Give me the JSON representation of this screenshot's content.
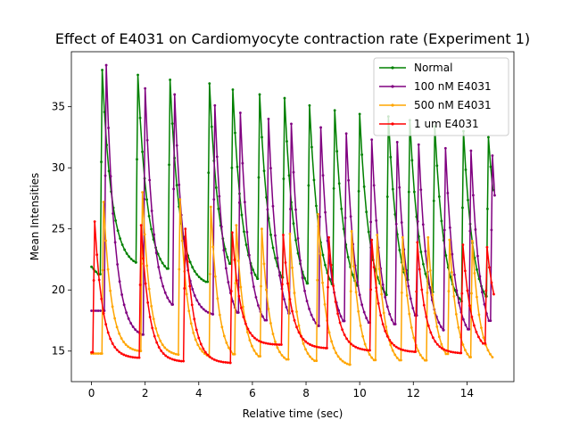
{
  "chart_data": {
    "type": "line",
    "title": "Effect of E4031 on Cardiomyocyte contraction rate (Experiment 1)",
    "xlabel": "Relative time (sec)",
    "ylabel": "Mean Intensities",
    "xlim": [
      -0.75,
      15.75
    ],
    "ylim": [
      12.5,
      39.5
    ],
    "xticks": [
      0,
      2,
      4,
      6,
      8,
      10,
      12,
      14
    ],
    "yticks": [
      15,
      20,
      25,
      30,
      35
    ],
    "grid": false,
    "legend": "top-right",
    "series": [
      {
        "name": "Normal",
        "color": "#008000",
        "base": 21.9,
        "peaks": [
          [
            0.4,
            38.0
          ],
          [
            1.73,
            37.6
          ],
          [
            2.93,
            37.2
          ],
          [
            4.4,
            36.9
          ],
          [
            5.27,
            36.4
          ],
          [
            6.27,
            36.0
          ],
          [
            7.2,
            35.7
          ],
          [
            8.13,
            35.1
          ],
          [
            9.07,
            34.7
          ],
          [
            10.0,
            34.4
          ],
          [
            11.07,
            34.2
          ],
          [
            11.87,
            33.9
          ],
          [
            12.8,
            33.4
          ],
          [
            13.87,
            33.0
          ],
          [
            14.8,
            32.5
          ]
        ],
        "troughs": [
          21.1,
          21.8,
          21.0,
          20.3,
          20.2,
          19.7,
          19.5,
          19.0,
          19.0,
          18.9,
          18.7,
          18.5,
          18.4,
          18.2,
          18.1
        ],
        "tail_end": 21.1,
        "tau": 0.35,
        "rise": 0.07,
        "x_end": 15.0,
        "samples_per_sec": 12
      },
      {
        "name": "100 nM E4031",
        "color": "#800080",
        "base": 18.3,
        "peaks": [
          [
            0.55,
            38.4
          ],
          [
            2.0,
            36.5
          ],
          [
            3.1,
            36.0
          ],
          [
            4.6,
            35.1
          ],
          [
            5.55,
            34.5
          ],
          [
            6.6,
            34.0
          ],
          [
            7.45,
            33.6
          ],
          [
            8.55,
            33.3
          ],
          [
            9.5,
            32.8
          ],
          [
            10.45,
            32.3
          ],
          [
            11.4,
            32.1
          ],
          [
            12.2,
            31.9
          ],
          [
            13.2,
            31.6
          ],
          [
            14.15,
            31.4
          ],
          [
            14.95,
            31.0
          ]
        ],
        "troughs": [
          18.3,
          16.0,
          18.0,
          17.8,
          16.8,
          16.5,
          16.4,
          16.3,
          16.2,
          16.1,
          16.0,
          15.9,
          15.8,
          15.6,
          15.5
        ],
        "tail_end": 16.8,
        "tau": 0.32,
        "rise": 0.07,
        "x_end": 15.1,
        "samples_per_sec": 12
      },
      {
        "name": "500 nM E4031",
        "color": "#ffa500",
        "base": 14.8,
        "peaks": [
          [
            0.45,
            27.2
          ],
          [
            1.9,
            28.0
          ],
          [
            3.3,
            27.4
          ],
          [
            4.45,
            26.8
          ],
          [
            5.4,
            25.3
          ],
          [
            6.35,
            25.0
          ],
          [
            7.4,
            24.6
          ],
          [
            8.45,
            26.2
          ],
          [
            9.7,
            24.8
          ],
          [
            10.65,
            24.5
          ],
          [
            11.6,
            24.3
          ],
          [
            12.55,
            24.3
          ],
          [
            13.35,
            24.1
          ],
          [
            14.2,
            24.0
          ]
        ],
        "troughs": [
          14.8,
          14.9,
          14.6,
          14.3,
          14.1,
          14.0,
          13.9,
          13.8,
          13.7,
          13.7,
          13.7,
          13.7,
          13.8,
          13.8
        ],
        "tail_end": 13.8,
        "tau": 0.28,
        "rise": 0.06,
        "x_end": 15.0,
        "samples_per_sec": 12
      },
      {
        "name": "1 um E4031",
        "color": "#ff0000",
        "base": 14.9,
        "peaks": [
          [
            0.12,
            25.6
          ],
          [
            1.85,
            25.3
          ],
          [
            3.5,
            25.0
          ],
          [
            5.25,
            24.7
          ],
          [
            7.15,
            24.5
          ],
          [
            8.85,
            24.3
          ],
          [
            10.45,
            24.1
          ],
          [
            12.15,
            23.9
          ],
          [
            13.85,
            23.7
          ],
          [
            14.75,
            23.5
          ]
        ],
        "troughs": [
          14.9,
          14.4,
          14.1,
          14.0,
          15.5,
          15.2,
          15.0,
          14.9,
          14.8,
          14.9
        ],
        "tail_end": 16.7,
        "tau": 0.3,
        "rise": 0.07,
        "x_end": 15.0,
        "samples_per_sec": 12
      }
    ]
  }
}
